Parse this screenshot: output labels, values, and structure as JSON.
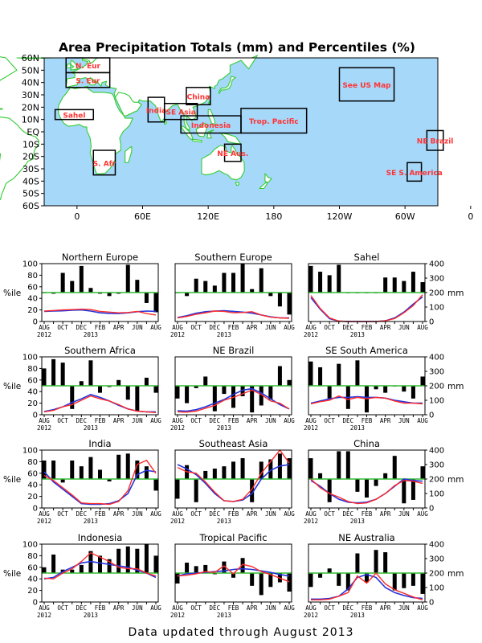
{
  "title": "Area Precipitation Totals (mm) and Percentiles (%)",
  "footer": "Data updated through August 2013",
  "colors": {
    "ocean": "#a6d8fa",
    "land": "#ffffff",
    "coast": "#33cc33",
    "region_text": "#ff3333",
    "bars": "#000000",
    "obs_line": "#ff2a2a",
    "normal_line": "#2233dd",
    "median_line": "#33bb33"
  },
  "map": {
    "lat_labels": [
      "60N",
      "50N",
      "40N",
      "30N",
      "20N",
      "10N",
      "EQ",
      "10S",
      "20S",
      "30S",
      "40S",
      "50S",
      "60S"
    ],
    "lon_labels": [
      "0",
      "60E",
      "120E",
      "180",
      "120W",
      "60W",
      "0"
    ],
    "regions": [
      {
        "name": "N. Eur",
        "lon": [
          -10,
          30
        ],
        "lat": [
          48,
          60
        ]
      },
      {
        "name": "S. Eur",
        "lon": [
          -10,
          30
        ],
        "lat": [
          36,
          48
        ]
      },
      {
        "name": "Sahel",
        "lon": [
          -20,
          15
        ],
        "lat": [
          10,
          18
        ]
      },
      {
        "name": "India",
        "lon": [
          65,
          80
        ],
        "lat": [
          8,
          28
        ]
      },
      {
        "name": "China",
        "lon": [
          100,
          122
        ],
        "lat": [
          22,
          36
        ]
      },
      {
        "name": "SE Asia",
        "lon": [
          80,
          110
        ],
        "lat": [
          10,
          23
        ]
      },
      {
        "name": "Indonesia",
        "lon": [
          95,
          150
        ],
        "lat": [
          -1,
          13
        ]
      },
      {
        "name": "Trop. Pacific",
        "lon": [
          150,
          210
        ],
        "lat": [
          -1,
          19
        ]
      },
      {
        "name": "NE Aus.",
        "lon": [
          135,
          150
        ],
        "lat": [
          -24,
          -10
        ]
      },
      {
        "name": "S. Afr",
        "lon": [
          15,
          35
        ],
        "lat": [
          -35,
          -15
        ]
      },
      {
        "name": "See US Map",
        "lon": [
          240,
          290
        ],
        "lat": [
          25,
          52
        ]
      },
      {
        "name": "NE Brazil",
        "lon": [
          320,
          335
        ],
        "lat": [
          -15,
          1
        ]
      },
      {
        "name": "SE S. America",
        "lon": [
          302,
          315
        ],
        "lat": [
          -40,
          -25
        ]
      }
    ]
  },
  "axes": {
    "left_ticks": [
      "0",
      "20",
      "40",
      "60",
      "80",
      "100"
    ],
    "right_ticks": [
      "0",
      "100",
      "200",
      "300",
      "400"
    ],
    "left_unit": "%ile",
    "right_unit": "mm",
    "x_months": [
      "AUG",
      "OCT",
      "DEC",
      "FEB",
      "APR",
      "JUN",
      "AUG"
    ],
    "x_years": [
      "2012",
      "2013"
    ]
  },
  "chart_data": [
    {
      "type": "bar",
      "title": "Northern Europe",
      "categories": [
        "Aug",
        "Sep",
        "Oct",
        "Nov",
        "Dec",
        "Jan",
        "Feb",
        "Mar",
        "Apr",
        "May",
        "Jun",
        "Jul",
        "Aug"
      ],
      "percentiles": [
        50,
        48,
        84,
        70,
        96,
        58,
        48,
        44,
        48,
        98,
        72,
        32,
        16
      ],
      "precip_mm": [
        72,
        76,
        80,
        82,
        85,
        83,
        70,
        65,
        60,
        62,
        70,
        55,
        45
      ],
      "normal_mm": [
        70,
        72,
        74,
        78,
        80,
        72,
        60,
        56,
        55,
        60,
        68,
        72,
        70
      ]
    },
    {
      "type": "bar",
      "title": "Southern Europe",
      "categories": [
        "Aug",
        "Sep",
        "Oct",
        "Nov",
        "Dec",
        "Jan",
        "Feb",
        "Mar",
        "Apr",
        "May",
        "Jun",
        "Jul",
        "Aug"
      ],
      "percentiles": [
        50,
        44,
        74,
        70,
        62,
        84,
        84,
        100,
        56,
        92,
        44,
        26,
        12
      ],
      "precip_mm": [
        25,
        35,
        50,
        60,
        72,
        70,
        60,
        62,
        68,
        45,
        30,
        25,
        22
      ],
      "normal_mm": [
        28,
        40,
        58,
        68,
        72,
        75,
        70,
        65,
        58,
        45,
        32,
        25,
        25
      ]
    },
    {
      "type": "bar",
      "title": "Sahel",
      "categories": [
        "Aug",
        "Sep",
        "Oct",
        "Nov",
        "Dec",
        "Jan",
        "Feb",
        "Mar",
        "Apr",
        "May",
        "Jun",
        "Jul",
        "Aug"
      ],
      "percentiles": [
        96,
        86,
        80,
        98,
        50,
        50,
        50,
        50,
        76,
        76,
        70,
        86,
        68
      ],
      "precip_mm": [
        180,
        90,
        25,
        3,
        0,
        0,
        0,
        0,
        5,
        20,
        60,
        110,
        185
      ],
      "normal_mm": [
        165,
        85,
        20,
        2,
        0,
        0,
        0,
        0,
        5,
        25,
        65,
        120,
        170
      ]
    },
    {
      "type": "bar",
      "title": "Southern Africa",
      "categories": [
        "Aug",
        "Sep",
        "Oct",
        "Nov",
        "Dec",
        "Jan",
        "Feb",
        "Mar",
        "Apr",
        "May",
        "Jun",
        "Jul",
        "Aug"
      ],
      "percentiles": [
        80,
        96,
        90,
        10,
        58,
        94,
        38,
        48,
        60,
        26,
        6,
        64,
        38
      ],
      "precip_mm": [
        20,
        30,
        55,
        70,
        100,
        130,
        110,
        95,
        70,
        40,
        25,
        20,
        15
      ],
      "normal_mm": [
        22,
        35,
        55,
        85,
        110,
        140,
        120,
        95,
        65,
        40,
        25,
        20,
        20
      ]
    },
    {
      "type": "bar",
      "title": "NE Brazil",
      "categories": [
        "Aug",
        "Sep",
        "Oct",
        "Nov",
        "Dec",
        "Jan",
        "Feb",
        "Mar",
        "Apr",
        "May",
        "Jun",
        "Jul",
        "Aug"
      ],
      "percentiles": [
        28,
        20,
        46,
        66,
        6,
        36,
        12,
        32,
        4,
        16,
        26,
        84,
        60
      ],
      "precip_mm": [
        20,
        18,
        25,
        45,
        65,
        100,
        120,
        145,
        170,
        140,
        95,
        80,
        40
      ],
      "normal_mm": [
        28,
        25,
        35,
        55,
        80,
        105,
        140,
        170,
        180,
        150,
        110,
        70,
        40
      ]
    },
    {
      "type": "bar",
      "title": "SE South America",
      "categories": [
        "Aug",
        "Sep",
        "Oct",
        "Nov",
        "Dec",
        "Jan",
        "Feb",
        "Mar",
        "Apr",
        "May",
        "Jun",
        "Jul",
        "Aug"
      ],
      "percentiles": [
        92,
        82,
        28,
        88,
        10,
        94,
        4,
        44,
        38,
        50,
        40,
        28,
        66
      ],
      "precip_mm": [
        75,
        90,
        100,
        130,
        105,
        120,
        110,
        120,
        115,
        95,
        80,
        80,
        75
      ],
      "normal_mm": [
        80,
        95,
        110,
        120,
        120,
        125,
        120,
        120,
        115,
        100,
        90,
        80,
        80
      ]
    },
    {
      "type": "bar",
      "title": "India",
      "categories": [
        "Aug",
        "Sep",
        "Oct",
        "Nov",
        "Dec",
        "Jan",
        "Feb",
        "Mar",
        "Apr",
        "May",
        "Jun",
        "Jul",
        "Aug"
      ],
      "percentiles": [
        82,
        82,
        44,
        82,
        72,
        88,
        66,
        46,
        92,
        94,
        82,
        72,
        30
      ],
      "precip_mm": [
        225,
        190,
        140,
        90,
        35,
        30,
        30,
        25,
        45,
        120,
        300,
        330,
        240
      ],
      "normal_mm": [
        250,
        180,
        130,
        80,
        30,
        25,
        25,
        30,
        50,
        100,
        230,
        260,
        250
      ]
    },
    {
      "type": "bar",
      "title": "Southeast Asia",
      "categories": [
        "Aug",
        "Sep",
        "Oct",
        "Nov",
        "Dec",
        "Jan",
        "Feb",
        "Mar",
        "Apr",
        "May",
        "Jun",
        "Jul",
        "Aug"
      ],
      "percentiles": [
        16,
        74,
        10,
        64,
        68,
        72,
        80,
        86,
        10,
        80,
        84,
        94,
        86
      ],
      "precip_mm": [
        280,
        250,
        240,
        180,
        110,
        50,
        45,
        60,
        130,
        240,
        320,
        400,
        310
      ],
      "normal_mm": [
        300,
        270,
        230,
        170,
        100,
        50,
        45,
        55,
        100,
        200,
        260,
        290,
        300
      ]
    },
    {
      "type": "bar",
      "title": "China",
      "categories": [
        "Aug",
        "Sep",
        "Oct",
        "Nov",
        "Dec",
        "Jan",
        "Feb",
        "Mar",
        "Apr",
        "May",
        "Jun",
        "Jul",
        "Aug"
      ],
      "percentiles": [
        86,
        60,
        10,
        98,
        98,
        28,
        18,
        38,
        60,
        90,
        8,
        14,
        72
      ],
      "precip_mm": [
        200,
        140,
        100,
        75,
        45,
        30,
        35,
        60,
        100,
        155,
        190,
        185,
        170
      ],
      "normal_mm": [
        190,
        150,
        100,
        60,
        40,
        35,
        40,
        60,
        100,
        150,
        200,
        190,
        185
      ]
    },
    {
      "type": "bar",
      "title": "Indonesia",
      "categories": [
        "Aug",
        "Sep",
        "Oct",
        "Nov",
        "Dec",
        "Jan",
        "Feb",
        "Mar",
        "Apr",
        "May",
        "Jun",
        "Jul",
        "Aug"
      ],
      "percentiles": [
        60,
        82,
        56,
        56,
        64,
        88,
        80,
        74,
        92,
        96,
        92,
        100,
        80
      ],
      "precip_mm": [
        165,
        160,
        200,
        230,
        280,
        340,
        310,
        280,
        240,
        230,
        230,
        200,
        180
      ],
      "normal_mm": [
        160,
        170,
        210,
        240,
        270,
        280,
        270,
        260,
        250,
        240,
        220,
        200,
        170
      ]
    },
    {
      "type": "bar",
      "title": "Tropical Pacific",
      "categories": [
        "Aug",
        "Sep",
        "Oct",
        "Nov",
        "Dec",
        "Jan",
        "Feb",
        "Mar",
        "Apr",
        "May",
        "Jun",
        "Jul",
        "Aug"
      ],
      "percentiles": [
        32,
        68,
        62,
        64,
        48,
        70,
        42,
        76,
        28,
        12,
        26,
        34,
        18
      ],
      "precip_mm": [
        180,
        185,
        195,
        210,
        205,
        250,
        195,
        260,
        245,
        210,
        190,
        165,
        140
      ],
      "normal_mm": [
        180,
        195,
        200,
        205,
        210,
        215,
        225,
        230,
        225,
        215,
        205,
        190,
        180
      ]
    },
    {
      "type": "bar",
      "title": "NE Australia",
      "categories": [
        "Aug",
        "Sep",
        "Oct",
        "Nov",
        "Dec",
        "Jan",
        "Feb",
        "Mar",
        "Apr",
        "May",
        "Jun",
        "Jul",
        "Aug"
      ],
      "percentiles": [
        26,
        42,
        58,
        28,
        20,
        84,
        34,
        90,
        86,
        20,
        24,
        28,
        14
      ],
      "precip_mm": [
        15,
        15,
        20,
        40,
        65,
        180,
        130,
        200,
        125,
        85,
        60,
        35,
        15
      ],
      "normal_mm": [
        20,
        20,
        25,
        40,
        90,
        170,
        190,
        170,
        100,
        65,
        45,
        30,
        25
      ]
    }
  ]
}
